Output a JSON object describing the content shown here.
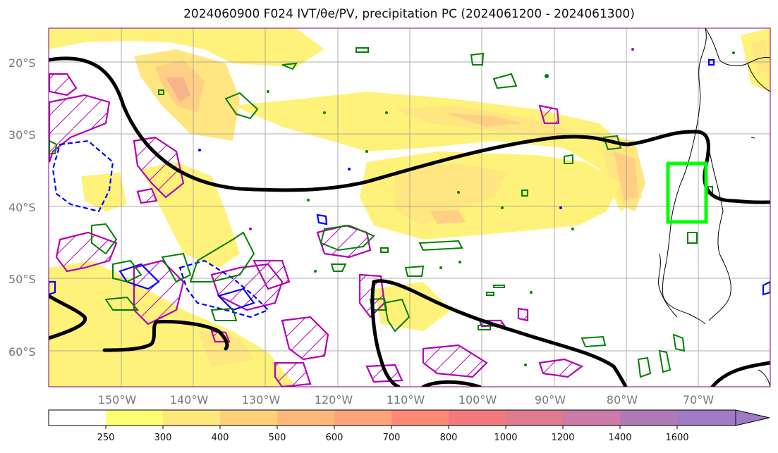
{
  "title": "2024060900 F024 IVT/θe/PV, precipitation PC (2024061200 - 2024061300)",
  "map": {
    "lon_ticks": [
      "150°W",
      "140°W",
      "130°W",
      "120°W",
      "110°W",
      "100°W",
      "90°W",
      "80°W",
      "70°W"
    ],
    "lat_ticks": [
      "20°S",
      "30°S",
      "40°S",
      "50°S",
      "60°S"
    ],
    "lon_range": [
      -160,
      -60
    ],
    "lat_range": [
      -65,
      -15
    ],
    "grid": true,
    "region_box": {
      "lon": [
        -74,
        -68
      ],
      "lat": [
        -42,
        -34
      ],
      "color": "#00ff00"
    }
  },
  "colorbar": {
    "ticks": [
      "250",
      "300",
      "400",
      "500",
      "600",
      "700",
      "800",
      "1000",
      "1200",
      "1400",
      "1600"
    ],
    "colors": [
      "#ffffff",
      "#ffff73",
      "#ffe87a",
      "#ffd07a",
      "#ffb87a",
      "#ffa47a",
      "#ff8a78",
      "#f27a7e",
      "#e07a8e",
      "#cc7aa8",
      "#b07ab8",
      "#a07ac4"
    ],
    "extend": "max"
  },
  "colors": {
    "theta_e": "#000000",
    "pv_positive": "#b400b4",
    "pv_negative": "#0000ff",
    "precip": "#008000",
    "coastline": "#000000"
  }
}
